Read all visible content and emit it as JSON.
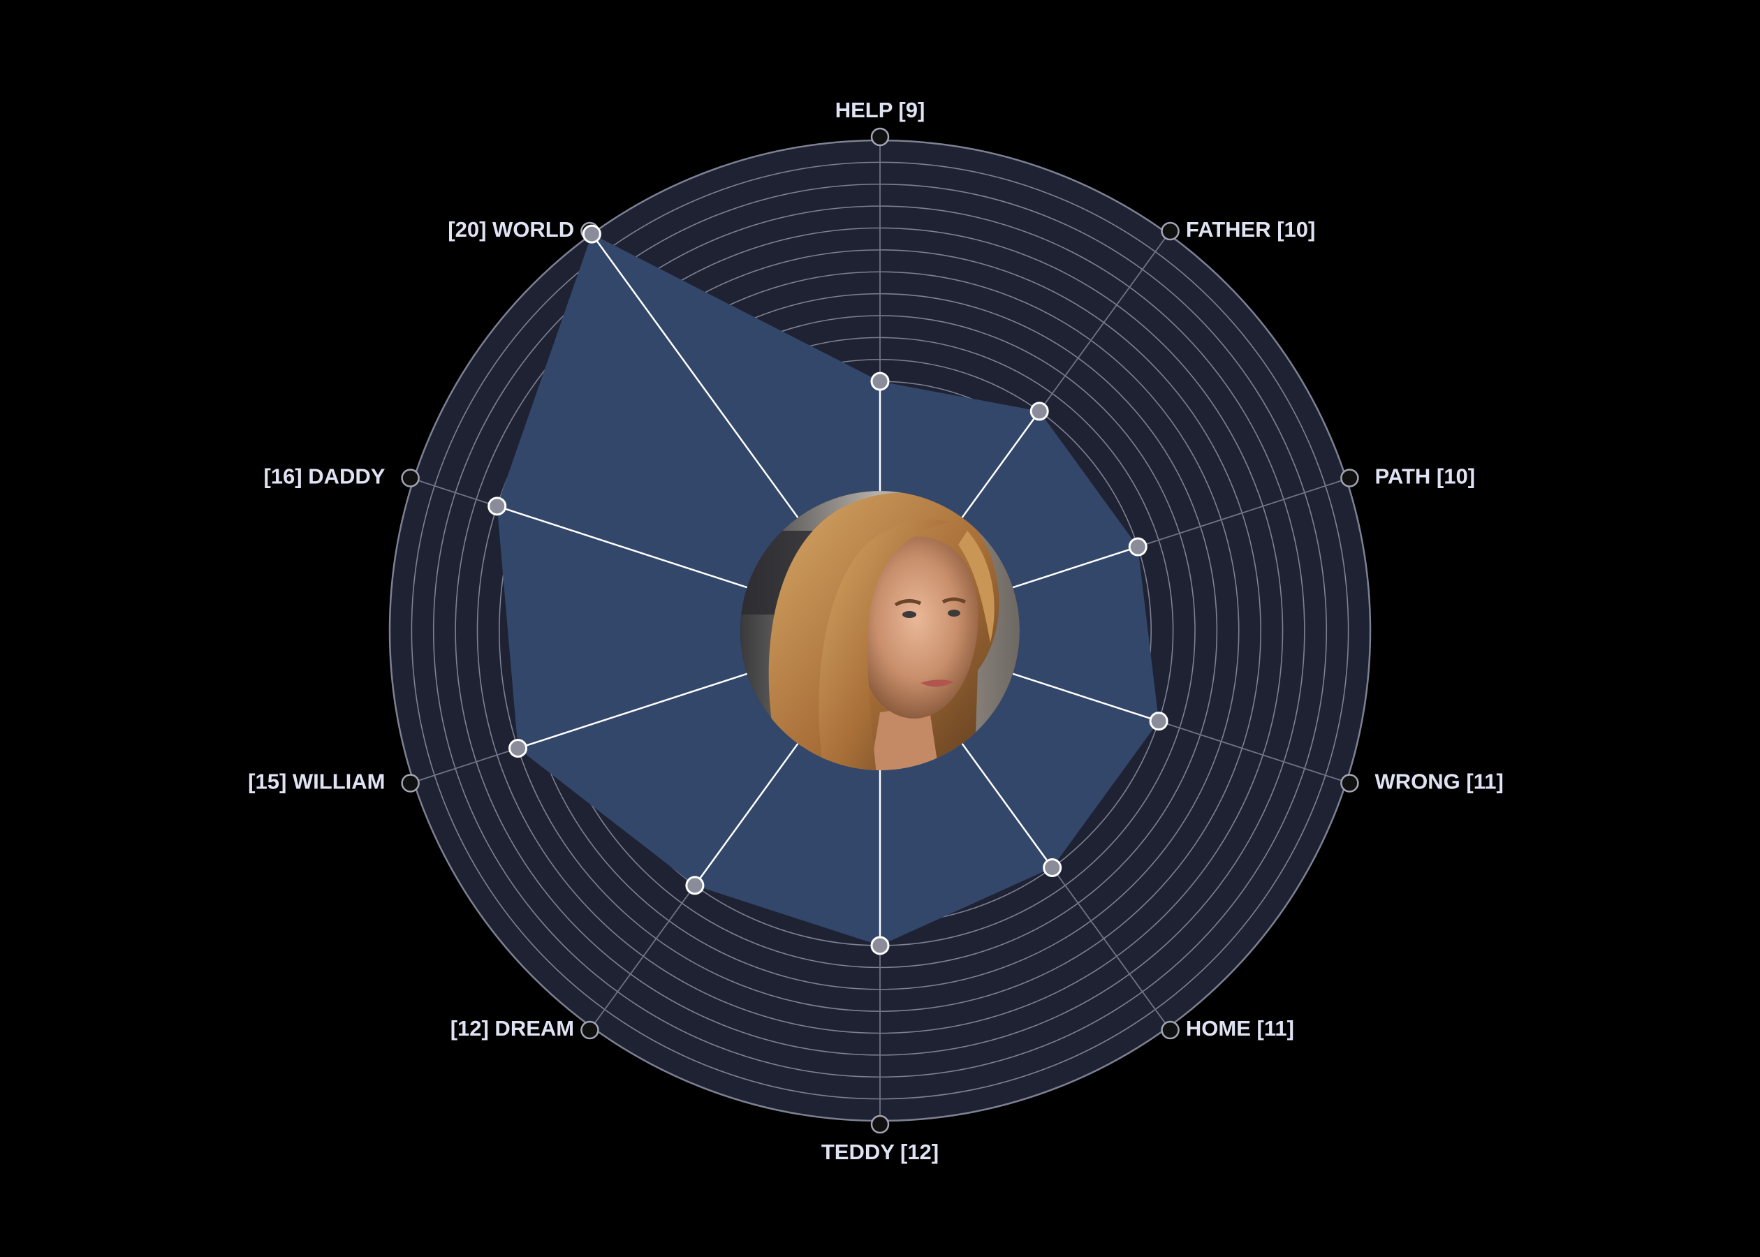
{
  "colors": {
    "background": "#000000",
    "disc_fill": "#1e2233",
    "ring_stroke": "#7d8193",
    "spoke_stroke": "#6f7385",
    "area_fill": "#33476a",
    "data_spoke": "#ffffff",
    "point_fill": "#8a8c99",
    "point_stroke": "#ffffff",
    "end_marker_fill": "#111111",
    "end_marker_stroke": "#a2a5b3",
    "label": "#dfe3f3",
    "center_hole": "#0b0d14"
  },
  "center_image": {
    "description_icon": "portrait-photo-icon"
  },
  "chart_data": {
    "type": "radar",
    "title": "",
    "ring_count": 16,
    "value_range": [
      4,
      20
    ],
    "grid": true,
    "series": [
      {
        "values": [
          9,
          10,
          10,
          11,
          11,
          12,
          12,
          15,
          16,
          20
        ]
      }
    ],
    "axes": [
      {
        "word": "HELP",
        "value": 9,
        "label": "HELP [9]",
        "anchor": "middle"
      },
      {
        "word": "FATHER",
        "value": 10,
        "label": "FATHER [10]",
        "anchor": "start"
      },
      {
        "word": "PATH",
        "value": 10,
        "label": "PATH [10]",
        "anchor": "start"
      },
      {
        "word": "WRONG",
        "value": 11,
        "label": "WRONG [11]",
        "anchor": "start"
      },
      {
        "word": "HOME",
        "value": 11,
        "label": "HOME [11]",
        "anchor": "start"
      },
      {
        "word": "TEDDY",
        "value": 12,
        "label": "TEDDY [12]",
        "anchor": "middle"
      },
      {
        "word": "DREAM",
        "value": 12,
        "label": "[12] DREAM",
        "anchor": "end"
      },
      {
        "word": "WILLIAM",
        "value": 15,
        "label": "[15] WILLIAM",
        "anchor": "end"
      },
      {
        "word": "DADDY",
        "value": 16,
        "label": "[16] DADDY",
        "anchor": "end"
      },
      {
        "word": "WORLD",
        "value": 20,
        "label": "[20] WORLD",
        "anchor": "end"
      }
    ]
  }
}
